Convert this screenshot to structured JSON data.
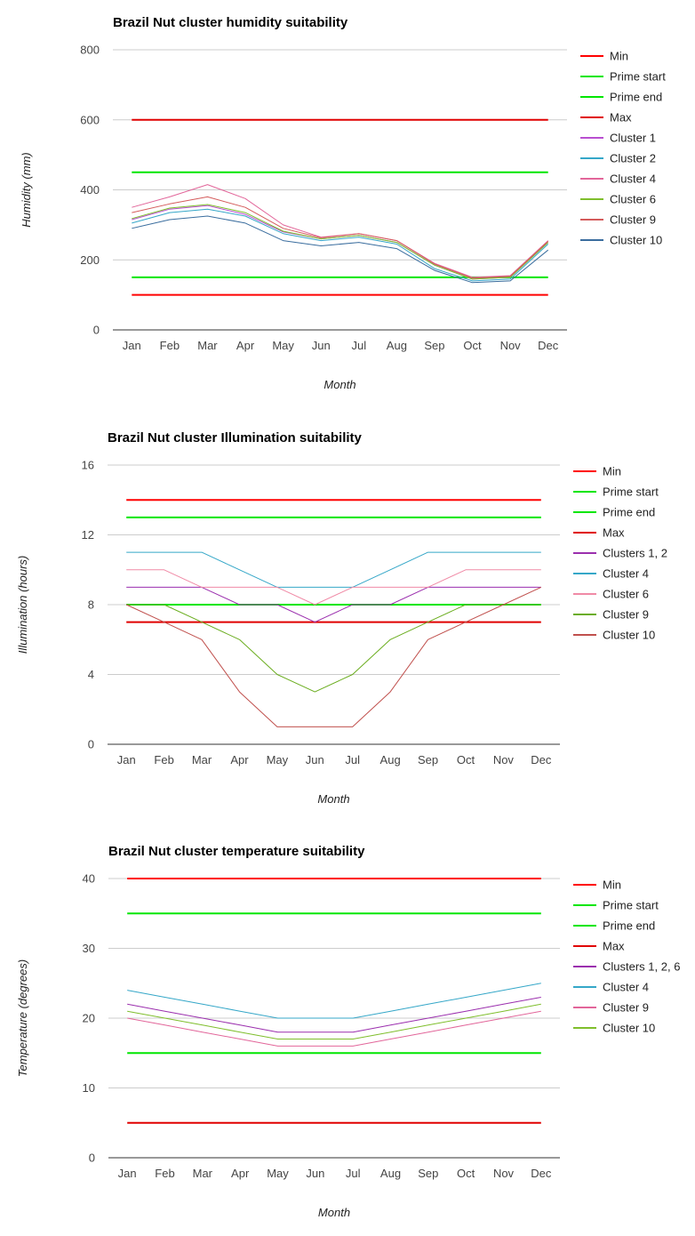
{
  "chart_data": [
    {
      "type": "line",
      "title": "Brazil Nut cluster humidity suitability",
      "xlabel": "Month",
      "ylabel": "Humidity (mm)",
      "categories": [
        "Jan",
        "Feb",
        "Mar",
        "Apr",
        "May",
        "Jun",
        "Jul",
        "Aug",
        "Sep",
        "Oct",
        "Nov",
        "Dec"
      ],
      "yticks": [
        0,
        200,
        400,
        600,
        800
      ],
      "ylim": [
        0,
        800
      ],
      "grid": true,
      "legend_position": "right",
      "series": [
        {
          "name": "Min",
          "color": "#ff0000",
          "values": [
            100,
            100,
            100,
            100,
            100,
            100,
            100,
            100,
            100,
            100,
            100,
            100
          ]
        },
        {
          "name": "Prime start",
          "color": "#00e600",
          "values": [
            150,
            150,
            150,
            150,
            150,
            150,
            150,
            150,
            150,
            150,
            150,
            150
          ]
        },
        {
          "name": "Prime end",
          "color": "#00e600",
          "values": [
            450,
            450,
            450,
            450,
            450,
            450,
            450,
            450,
            450,
            450,
            450,
            450
          ]
        },
        {
          "name": "Max",
          "color": "#e00000",
          "values": [
            600,
            600,
            600,
            600,
            600,
            600,
            600,
            600,
            600,
            600,
            600,
            600
          ]
        },
        {
          "name": "Cluster 1",
          "color": "#b84fd0",
          "values": [
            315,
            345,
            355,
            330,
            280,
            260,
            270,
            250,
            185,
            145,
            150,
            250
          ]
        },
        {
          "name": "Cluster 2",
          "color": "#35a7c8",
          "values": [
            305,
            335,
            345,
            325,
            275,
            255,
            265,
            245,
            175,
            140,
            145,
            245
          ]
        },
        {
          "name": "Cluster 4",
          "color": "#e2669a",
          "values": [
            350,
            380,
            415,
            375,
            300,
            265,
            275,
            255,
            190,
            150,
            155,
            255
          ]
        },
        {
          "name": "Cluster 6",
          "color": "#7fbe2c",
          "values": [
            318,
            348,
            358,
            335,
            282,
            260,
            270,
            250,
            185,
            145,
            150,
            250
          ]
        },
        {
          "name": "Cluster 9",
          "color": "#d45b5b",
          "values": [
            335,
            360,
            380,
            350,
            290,
            263,
            275,
            255,
            188,
            148,
            153,
            253
          ]
        },
        {
          "name": "Cluster 10",
          "color": "#3a6d9e",
          "values": [
            290,
            315,
            325,
            305,
            255,
            240,
            250,
            232,
            170,
            135,
            140,
            228
          ]
        }
      ]
    },
    {
      "type": "line",
      "title": "Brazil Nut cluster Illumination suitability",
      "xlabel": "Month",
      "ylabel": "Illumination (hours)",
      "categories": [
        "Jan",
        "Feb",
        "Mar",
        "Apr",
        "May",
        "Jun",
        "Jul",
        "Aug",
        "Sep",
        "Oct",
        "Nov",
        "Dec"
      ],
      "yticks": [
        0,
        4,
        8,
        12,
        16
      ],
      "ylim": [
        0,
        16
      ],
      "grid": true,
      "legend_position": "right",
      "series": [
        {
          "name": "Min",
          "color": "#ff0000",
          "values": [
            14,
            14,
            14,
            14,
            14,
            14,
            14,
            14,
            14,
            14,
            14,
            14
          ]
        },
        {
          "name": "Prime start",
          "color": "#00e600",
          "values": [
            13,
            13,
            13,
            13,
            13,
            13,
            13,
            13,
            13,
            13,
            13,
            13
          ]
        },
        {
          "name": "Prime end",
          "color": "#00e600",
          "values": [
            8,
            8,
            8,
            8,
            8,
            8,
            8,
            8,
            8,
            8,
            8,
            8
          ]
        },
        {
          "name": "Max",
          "color": "#e00000",
          "values": [
            7,
            7,
            7,
            7,
            7,
            7,
            7,
            7,
            7,
            7,
            7,
            7
          ]
        },
        {
          "name": "Clusters 1, 2",
          "color": "#9b2fae",
          "values": [
            9,
            9,
            9,
            8,
            8,
            7,
            8,
            8,
            9,
            9,
            9,
            9
          ]
        },
        {
          "name": "Cluster 4",
          "color": "#35a7c8",
          "values": [
            11,
            11,
            11,
            10,
            9,
            9,
            9,
            10,
            11,
            11,
            11,
            11
          ]
        },
        {
          "name": "Cluster 6",
          "color": "#f08aa6",
          "values": [
            10,
            10,
            9,
            9,
            9,
            8,
            9,
            9,
            9,
            10,
            10,
            10
          ]
        },
        {
          "name": "Cluster 9",
          "color": "#6aad1e",
          "values": [
            8,
            8,
            7,
            6,
            4,
            3,
            4,
            6,
            7,
            8,
            8,
            8
          ]
        },
        {
          "name": "Cluster 10",
          "color": "#c0504d",
          "values": [
            8,
            7,
            6,
            3,
            1,
            1,
            1,
            3,
            6,
            7,
            8,
            9
          ]
        }
      ]
    },
    {
      "type": "line",
      "title": "Brazil Nut cluster temperature suitability",
      "xlabel": "Month",
      "ylabel": "Temperature (degrees)",
      "categories": [
        "Jan",
        "Feb",
        "Mar",
        "Apr",
        "May",
        "Jun",
        "Jul",
        "Aug",
        "Sep",
        "Oct",
        "Nov",
        "Dec"
      ],
      "yticks": [
        0,
        10,
        20,
        30,
        40
      ],
      "ylim": [
        0,
        40
      ],
      "grid": true,
      "legend_position": "right",
      "series": [
        {
          "name": "Min",
          "color": "#ff0000",
          "values": [
            40,
            40,
            40,
            40,
            40,
            40,
            40,
            40,
            40,
            40,
            40,
            40
          ]
        },
        {
          "name": "Prime start",
          "color": "#00e600",
          "values": [
            35,
            35,
            35,
            35,
            35,
            35,
            35,
            35,
            35,
            35,
            35,
            35
          ]
        },
        {
          "name": "Prime end",
          "color": "#00e600",
          "values": [
            15,
            15,
            15,
            15,
            15,
            15,
            15,
            15,
            15,
            15,
            15,
            15
          ]
        },
        {
          "name": "Max",
          "color": "#e00000",
          "values": [
            5,
            5,
            5,
            5,
            5,
            5,
            5,
            5,
            5,
            5,
            5,
            5
          ]
        },
        {
          "name": "Clusters 1, 2, 6",
          "color": "#9b2fae",
          "values": [
            22,
            21,
            20,
            19,
            18,
            18,
            18,
            19,
            20,
            21,
            22,
            23
          ]
        },
        {
          "name": "Cluster 4",
          "color": "#35a7c8",
          "values": [
            24,
            23,
            22,
            21,
            20,
            20,
            20,
            21,
            22,
            23,
            24,
            25
          ]
        },
        {
          "name": "Cluster 9",
          "color": "#e2669a",
          "values": [
            20,
            19,
            18,
            17,
            16,
            16,
            16,
            17,
            18,
            19,
            20,
            21
          ]
        },
        {
          "name": "Cluster 10",
          "color": "#7fbe2c",
          "values": [
            21,
            20,
            19,
            18,
            17,
            17,
            17,
            18,
            19,
            20,
            21,
            22
          ]
        }
      ]
    }
  ]
}
